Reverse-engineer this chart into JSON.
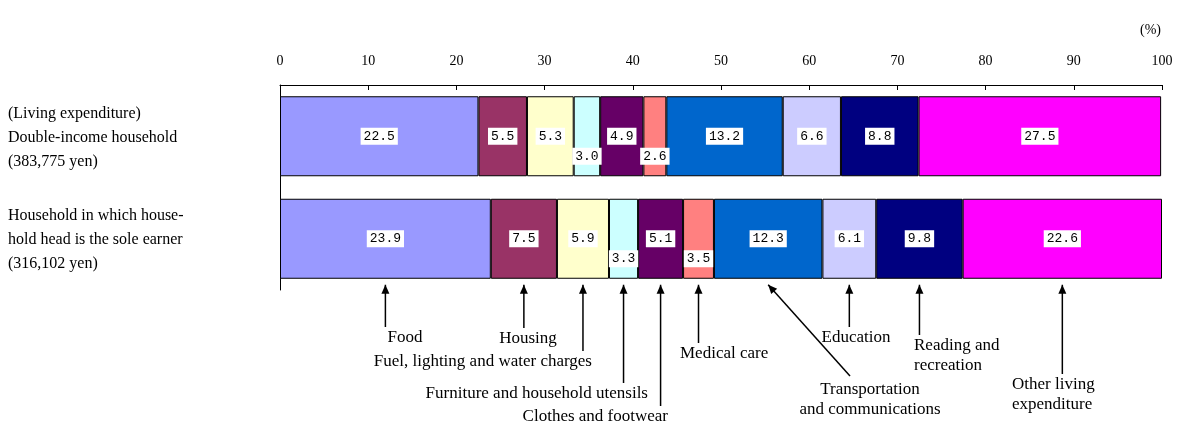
{
  "chart_data": {
    "type": "bar",
    "stacked": true,
    "orientation": "horizontal",
    "xlabel": "(%)",
    "xlim": [
      0,
      100
    ],
    "xticks": [
      0,
      10,
      20,
      30,
      40,
      50,
      60,
      70,
      80,
      90,
      100
    ],
    "grid": false,
    "legend": false,
    "categories": [
      "(Living expenditure)\nDouble-income household\n(383,775 yen)",
      "Household in which house-\nhold head is the sole earner\n(316,102 yen)"
    ],
    "series": [
      {
        "name": "Food",
        "color": "#9999ff",
        "values": [
          22.5,
          23.9
        ],
        "value_labels": [
          "22.5",
          "23.9"
        ]
      },
      {
        "name": "Housing",
        "color": "#993366",
        "values": [
          5.5,
          7.5
        ],
        "value_labels": [
          "5.5",
          "7.5"
        ]
      },
      {
        "name": "Fuel, lighting and water charges",
        "color": "#ffffcc",
        "values": [
          5.3,
          5.9
        ],
        "value_labels": [
          "5.3",
          "5.9"
        ]
      },
      {
        "name": "Furniture and household utensils",
        "color": "#ccffff",
        "values": [
          3.0,
          3.3
        ],
        "value_labels": [
          "3.0",
          "3.3"
        ]
      },
      {
        "name": "Clothes and footwear",
        "color": "#660066",
        "values": [
          4.9,
          5.1
        ],
        "value_labels": [
          "4.9",
          "5.1"
        ]
      },
      {
        "name": "Medical care",
        "color": "#ff8080",
        "values": [
          2.6,
          3.5
        ],
        "value_labels": [
          "2.6",
          "3.5"
        ]
      },
      {
        "name": "Transportation\nand communications",
        "color": "#0066cc",
        "values": [
          13.2,
          12.3
        ],
        "value_labels": [
          "13.2",
          "12.3"
        ]
      },
      {
        "name": "Education",
        "color": "#ccccff",
        "values": [
          6.6,
          6.1
        ],
        "value_labels": [
          "6.6",
          "6.1"
        ]
      },
      {
        "name": "Reading and\nrecreation",
        "color": "#000080",
        "values": [
          8.8,
          9.8
        ],
        "value_labels": [
          "8.8",
          "9.8"
        ]
      },
      {
        "name": "Other living\nexpenditure",
        "color": "#ff00ff",
        "values": [
          27.5,
          22.6
        ],
        "value_labels": [
          "27.5",
          "22.6"
        ]
      }
    ]
  }
}
